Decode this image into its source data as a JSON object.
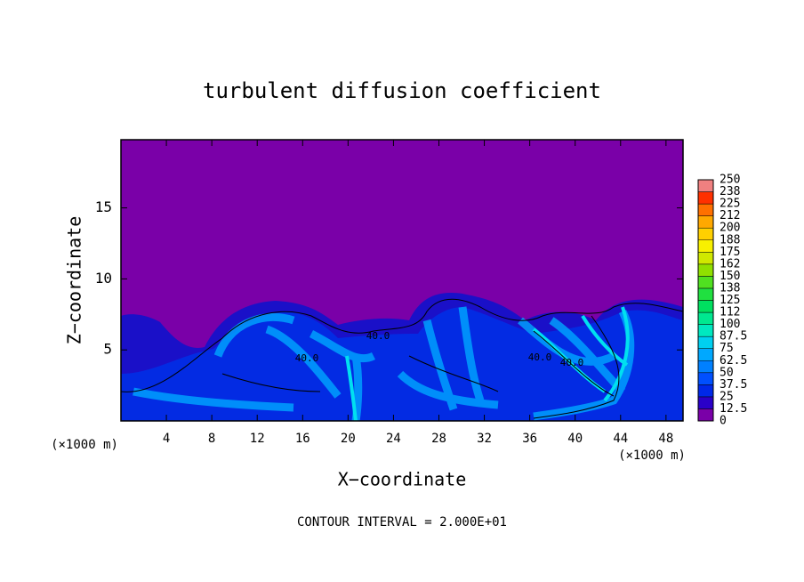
{
  "chart_data": {
    "type": "contour",
    "title": "turbulent diffusion coefficient",
    "x_label": "X−coordinate",
    "y_label": "Z−coordinate",
    "x_unit": "(×1000 m)",
    "y_unit": "(×1000 m)",
    "footnote": "CONTOUR INTERVAL = 2.000E+01",
    "xlim": [
      0,
      49.5
    ],
    "xticks": [
      4,
      8,
      12,
      16,
      20,
      24,
      28,
      32,
      36,
      40,
      44,
      48
    ],
    "ylim": [
      0,
      19.8
    ],
    "yticks": [
      5,
      10,
      15
    ],
    "contour_labels": [
      "40.0",
      "40.0",
      "40.0",
      "40.0"
    ],
    "colorbar": {
      "levels": [
        0,
        12.5,
        25,
        37.5,
        50,
        62.5,
        75,
        87.5,
        100,
        112,
        125,
        138,
        150,
        162,
        175,
        188,
        200,
        212,
        225,
        238,
        250
      ],
      "colors": [
        "#7a00a8",
        "#2a00c8",
        "#0028e8",
        "#0050ff",
        "#0080ff",
        "#00a8ff",
        "#00d0f0",
        "#00e8c0",
        "#00e890",
        "#00e060",
        "#20e040",
        "#50e020",
        "#90e000",
        "#d0e800",
        "#f8f000",
        "#ffd000",
        "#ffa800",
        "#ff7000",
        "#ff3000",
        "#ff0000"
      ],
      "top_color": "#f08080"
    }
  }
}
